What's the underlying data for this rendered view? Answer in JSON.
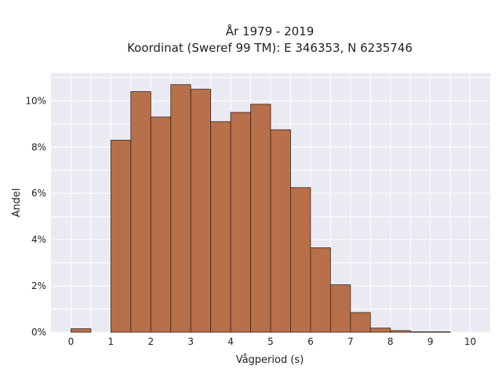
{
  "chart_data": {
    "type": "bar",
    "title": "År 1979 - 2019",
    "subtitle": "Koordinat (Sweref 99 TM): E 346353, N 6235746",
    "xlabel": "Vågperiod (s)",
    "ylabel": "Andel",
    "xlim": [
      -0.5,
      10.5
    ],
    "ylim": [
      0,
      11.2
    ],
    "x_ticks": [
      "0",
      "1",
      "2",
      "3",
      "4",
      "5",
      "6",
      "7",
      "8",
      "9",
      "10"
    ],
    "y_ticks": [
      "0%",
      "2%",
      "4%",
      "6%",
      "8%",
      "10%"
    ],
    "bin_width": 0.5,
    "bins": [
      {
        "start": 0.0,
        "value": 0.15
      },
      {
        "start": 0.5,
        "value": 0.0
      },
      {
        "start": 1.0,
        "value": 8.3
      },
      {
        "start": 1.5,
        "value": 10.4
      },
      {
        "start": 2.0,
        "value": 9.3
      },
      {
        "start": 2.5,
        "value": 10.7
      },
      {
        "start": 3.0,
        "value": 10.5
      },
      {
        "start": 3.5,
        "value": 9.1
      },
      {
        "start": 4.0,
        "value": 9.5
      },
      {
        "start": 4.5,
        "value": 9.85
      },
      {
        "start": 5.0,
        "value": 8.75
      },
      {
        "start": 5.5,
        "value": 6.25
      },
      {
        "start": 6.0,
        "value": 3.65
      },
      {
        "start": 6.5,
        "value": 2.05
      },
      {
        "start": 7.0,
        "value": 0.85
      },
      {
        "start": 7.5,
        "value": 0.18
      },
      {
        "start": 8.0,
        "value": 0.07
      },
      {
        "start": 8.5,
        "value": 0.02
      },
      {
        "start": 9.0,
        "value": 0.02
      }
    ],
    "grid": true,
    "colors": {
      "bar": "#b8704a",
      "bar_edge": "#3a2418",
      "plot_bg": "#eaeaf2"
    }
  }
}
